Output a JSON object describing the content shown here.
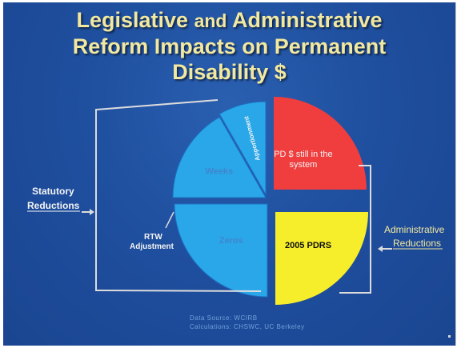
{
  "title": {
    "line1_a": "Legislative",
    "line1_b": "and",
    "line1_c": "Administrative",
    "line2": "Reform Impacts on Permanent",
    "line3": "Disability $"
  },
  "chart_data": {
    "type": "pie",
    "exploded": true,
    "slices": [
      {
        "label": "PD $ still in the system",
        "value": 25,
        "color": "#f03d3d"
      },
      {
        "label": "2005 PDRS",
        "value": 25,
        "color": "#f6ee2a"
      },
      {
        "label": "Zeros",
        "value": 25,
        "color": "#2aa7e8"
      },
      {
        "label": "Weeks",
        "value": 16.7,
        "color": "#2aa7e8"
      },
      {
        "label": "Apportionment",
        "value": 8.3,
        "color": "#2aa7e8"
      }
    ],
    "annotations": {
      "statutory": "Statutory Reductions",
      "statutory_line1": "Statutory",
      "statutory_line2": "Reductions",
      "administrative_line1": "Administrative",
      "administrative_line2": "Reductions",
      "rtw_line1": "RTW",
      "rtw_line2": "Adjustment"
    },
    "colors": {
      "statutory_blue": "#2aa7e8",
      "red": "#f03d3d",
      "yellow": "#f6ee2a",
      "title": "#f2e8a0"
    }
  },
  "source": {
    "line1": "Data Source:  WCIRB",
    "line2": "Calculations:  CHSWC, UC Berkeley"
  }
}
